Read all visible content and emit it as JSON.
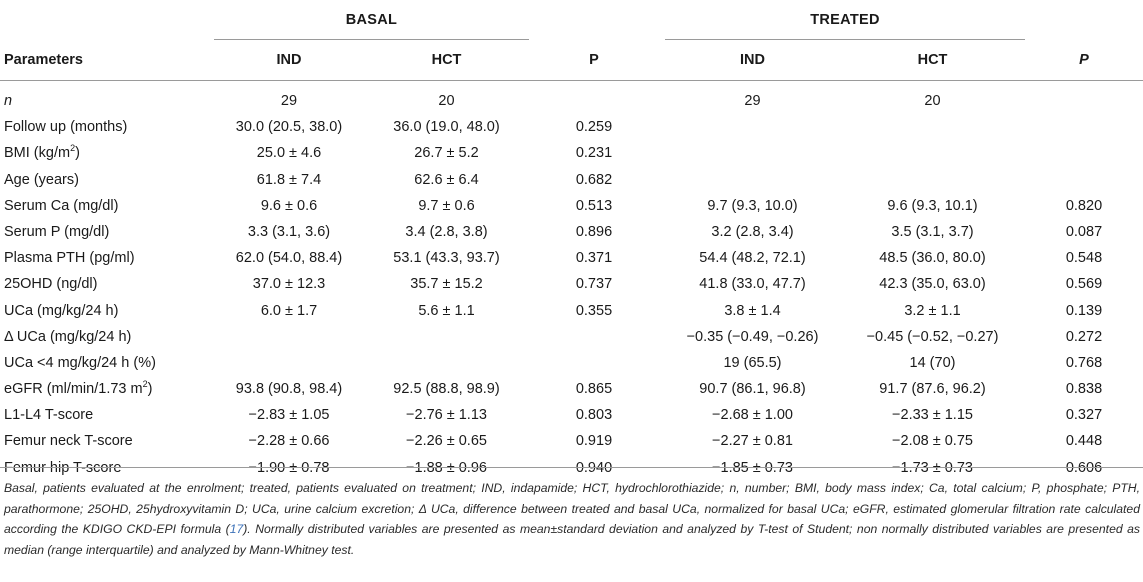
{
  "table": {
    "groups": {
      "basal": "BASAL",
      "treated": "TREATED"
    },
    "headers": {
      "parameters": "Parameters",
      "basal_ind": "IND",
      "basal_hct": "HCT",
      "basal_p": "P",
      "treated_ind": "IND",
      "treated_hct": "HCT",
      "treated_p": "P"
    },
    "rows": [
      {
        "param": "n",
        "b_ind": "29",
        "b_hct": "20",
        "b_p": "",
        "t_ind": "29",
        "t_hct": "20",
        "t_p": ""
      },
      {
        "param": "Follow up (months)",
        "b_ind": "30.0 (20.5, 38.0)",
        "b_hct": "36.0 (19.0, 48.0)",
        "b_p": "0.259",
        "t_ind": "",
        "t_hct": "",
        "t_p": ""
      },
      {
        "param": "BMI (kg/m",
        "param_sup": "2",
        "param_after": ")",
        "b_ind": "25.0 ± 4.6",
        "b_hct": "26.7 ± 5.2",
        "b_p": "0.231",
        "t_ind": "",
        "t_hct": "",
        "t_p": ""
      },
      {
        "param": "Age (years)",
        "b_ind": "61.8 ± 7.4",
        "b_hct": "62.6 ± 6.4",
        "b_p": "0.682",
        "t_ind": "",
        "t_hct": "",
        "t_p": ""
      },
      {
        "param": "Serum Ca (mg/dl)",
        "b_ind": "9.6 ± 0.6",
        "b_hct": "9.7 ± 0.6",
        "b_p": "0.513",
        "t_ind": "9.7 (9.3, 10.0)",
        "t_hct": "9.6 (9.3, 10.1)",
        "t_p": "0.820"
      },
      {
        "param": "Serum P (mg/dl)",
        "b_ind": "3.3 (3.1, 3.6)",
        "b_hct": "3.4 (2.8, 3.8)",
        "b_p": "0.896",
        "t_ind": "3.2 (2.8, 3.4)",
        "t_hct": "3.5 (3.1, 3.7)",
        "t_p": "0.087"
      },
      {
        "param": "Plasma PTH (pg/ml)",
        "b_ind": "62.0 (54.0, 88.4)",
        "b_hct": "53.1 (43.3, 93.7)",
        "b_p": "0.371",
        "t_ind": "54.4 (48.2, 72.1)",
        "t_hct": "48.5 (36.0, 80.0)",
        "t_p": "0.548"
      },
      {
        "param": "25OHD (ng/dl)",
        "b_ind": "37.0 ± 12.3",
        "b_hct": "35.7 ± 15.2",
        "b_p": "0.737",
        "t_ind": "41.8 (33.0, 47.7)",
        "t_hct": "42.3 (35.0, 63.0)",
        "t_p": "0.569"
      },
      {
        "param": "UCa (mg/kg/24 h)",
        "b_ind": "6.0 ± 1.7",
        "b_hct": "5.6 ± 1.1",
        "b_p": "0.355",
        "t_ind": "3.8 ± 1.4",
        "t_hct": "3.2 ± 1.1",
        "t_p": "0.139"
      },
      {
        "param": "Δ UCa (mg/kg/24 h)",
        "b_ind": "",
        "b_hct": "",
        "b_p": "",
        "t_ind": "−0.35 (−0.49, −0.26)",
        "t_hct": "−0.45 (−0.52, −0.27)",
        "t_p": "0.272"
      },
      {
        "param": "UCa <4 mg/kg/24 h (%)",
        "b_ind": "",
        "b_hct": "",
        "b_p": "",
        "t_ind": "19 (65.5)",
        "t_hct": "14 (70)",
        "t_p": "0.768"
      },
      {
        "param": "eGFR (ml/min/1.73 m",
        "param_sup": "2",
        "param_after": ")",
        "b_ind": "93.8 (90.8, 98.4)",
        "b_hct": "92.5 (88.8, 98.9)",
        "b_p": "0.865",
        "t_ind": "90.7 (86.1, 96.8)",
        "t_hct": "91.7 (87.6, 96.2)",
        "t_p": "0.838"
      },
      {
        "param": "L1-L4 T-score",
        "b_ind": "−2.83 ± 1.05",
        "b_hct": "−2.76 ± 1.13",
        "b_p": "0.803",
        "t_ind": "−2.68 ± 1.00",
        "t_hct": "−2.33 ± 1.15",
        "t_p": "0.327"
      },
      {
        "param": "Femur neck T-score",
        "b_ind": "−2.28 ± 0.66",
        "b_hct": "−2.26 ± 0.65",
        "b_p": "0.919",
        "t_ind": "−2.27 ± 0.81",
        "t_hct": "−2.08 ± 0.75",
        "t_p": "0.448"
      },
      {
        "param": "Femur hip T-score",
        "b_ind": "−1.90 ± 0.78",
        "b_hct": "−1.88 ± 0.96",
        "b_p": "0.940",
        "t_ind": "−1.85 ± 0.73",
        "t_hct": "−1.73 ± 0.73",
        "t_p": "0.606"
      }
    ]
  },
  "footnote": {
    "before_ref": "Basal, patients evaluated at the enrolment; treated, patients evaluated on treatment; IND, indapamide; HCT, hydrochlorothiazide; n, number; BMI, body mass index; Ca, total calcium; P, phosphate; PTH, parathormone; 25OHD, 25hydroxyvitamin D; UCa, urine calcium excretion; Δ UCa, difference between treated and basal UCa, normalized for basal UCa; eGFR, estimated glomerular filtration rate calculated according the KDIGO CKD-EPI formula (",
    "ref": "17",
    "after_ref": "). Normally distributed variables are presented as mean±standard deviation and analyzed by T-test of Student; non normally distributed variables are presented as median (range interquartile) and analyzed by Mann-Whitney test."
  },
  "colors": {
    "rule": "#9a9a9a",
    "ref_link": "#3d72b8",
    "text": "#1a1a1a"
  }
}
